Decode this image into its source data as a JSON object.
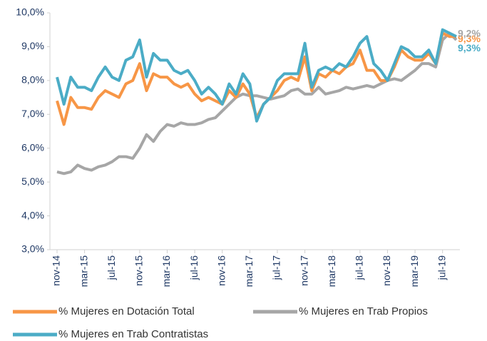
{
  "chart_data": {
    "type": "line",
    "categories": [
      "nov-14",
      null,
      null,
      null,
      "mar-15",
      null,
      null,
      null,
      "jul-15",
      null,
      null,
      null,
      "nov-15",
      null,
      null,
      null,
      "mar-16",
      null,
      null,
      null,
      "jul-16",
      null,
      null,
      null,
      "nov-16",
      null,
      null,
      null,
      "mar-17",
      null,
      null,
      null,
      "jul-17",
      null,
      null,
      null,
      "nov-17",
      null,
      null,
      null,
      "mar-18",
      null,
      null,
      null,
      "jul-18",
      null,
      null,
      null,
      "nov-18",
      null,
      null,
      null,
      "mar-19",
      null,
      null,
      null,
      "jul-19",
      null,
      null
    ],
    "series": [
      {
        "name": "% Mujeres en Dotación Total",
        "color": "#f79646",
        "values": [
          7.4,
          6.7,
          7.5,
          7.2,
          7.2,
          7.15,
          7.5,
          7.7,
          7.6,
          7.5,
          7.9,
          8.0,
          8.5,
          7.7,
          8.2,
          8.1,
          8.1,
          7.9,
          7.8,
          7.9,
          7.6,
          7.4,
          7.5,
          7.4,
          7.3,
          7.7,
          7.5,
          7.9,
          7.6,
          6.9,
          7.3,
          7.5,
          7.7,
          8.0,
          8.1,
          8.0,
          8.7,
          7.7,
          8.2,
          8.1,
          8.3,
          8.2,
          8.4,
          8.5,
          8.9,
          8.3,
          8.3,
          8.0,
          8.0,
          8.4,
          8.9,
          8.7,
          8.6,
          8.6,
          8.8,
          8.5,
          9.4,
          9.3,
          9.3
        ],
        "value_labels": [
          null,
          null,
          null,
          null,
          null,
          null,
          null,
          null,
          null,
          null,
          null,
          null,
          null,
          null,
          null,
          null,
          null,
          null,
          null,
          null,
          null,
          null,
          null,
          null,
          null,
          null,
          null,
          null,
          null,
          null,
          null,
          null,
          null,
          null,
          null,
          null,
          null,
          null,
          null,
          null,
          null,
          null,
          null,
          null,
          null,
          null,
          null,
          null,
          null,
          null,
          null,
          null,
          null,
          null,
          null,
          null,
          null,
          null,
          "9,3%"
        ]
      },
      {
        "name": "% Mujeres en Trab Propios",
        "color": "#a6a6a6",
        "values": [
          5.3,
          5.25,
          5.3,
          5.5,
          5.4,
          5.35,
          5.45,
          5.5,
          5.6,
          5.75,
          5.75,
          5.7,
          6.0,
          6.4,
          6.2,
          6.5,
          6.7,
          6.65,
          6.75,
          6.7,
          6.7,
          6.75,
          6.85,
          6.9,
          7.1,
          7.3,
          7.5,
          7.6,
          7.55,
          7.55,
          7.5,
          7.45,
          7.5,
          7.55,
          7.7,
          7.75,
          7.6,
          7.6,
          7.8,
          7.6,
          7.65,
          7.7,
          7.8,
          7.75,
          7.8,
          7.85,
          7.8,
          7.9,
          8.0,
          8.05,
          8.0,
          8.15,
          8.3,
          8.5,
          8.5,
          8.4,
          9.2,
          9.4,
          9.2
        ],
        "value_labels": [
          null,
          null,
          null,
          null,
          null,
          null,
          null,
          null,
          null,
          null,
          null,
          null,
          null,
          null,
          null,
          null,
          null,
          null,
          null,
          null,
          null,
          null,
          null,
          null,
          null,
          null,
          null,
          null,
          null,
          null,
          null,
          null,
          null,
          null,
          null,
          null,
          null,
          null,
          null,
          null,
          null,
          null,
          null,
          null,
          null,
          null,
          null,
          null,
          null,
          null,
          null,
          null,
          null,
          null,
          null,
          null,
          null,
          null,
          "9,2%"
        ]
      },
      {
        "name": "% Mujeres en Trab Contratistas",
        "color": "#4bacc6",
        "values": [
          8.1,
          7.3,
          8.1,
          7.8,
          7.8,
          7.7,
          8.1,
          8.4,
          8.1,
          8.0,
          8.6,
          8.7,
          9.2,
          8.1,
          8.8,
          8.6,
          8.6,
          8.3,
          8.2,
          8.3,
          8.0,
          7.6,
          7.8,
          7.6,
          7.3,
          7.9,
          7.6,
          8.2,
          7.9,
          6.8,
          7.3,
          7.5,
          8.0,
          8.2,
          8.2,
          8.2,
          9.1,
          7.8,
          8.3,
          8.4,
          8.3,
          8.5,
          8.4,
          8.7,
          9.1,
          9.3,
          8.5,
          8.3,
          8.0,
          8.5,
          9.0,
          8.9,
          8.7,
          8.7,
          8.9,
          8.5,
          9.5,
          9.4,
          9.3
        ],
        "value_labels": [
          null,
          null,
          null,
          null,
          null,
          null,
          null,
          null,
          null,
          null,
          null,
          null,
          null,
          null,
          null,
          null,
          null,
          null,
          null,
          null,
          null,
          null,
          null,
          null,
          null,
          null,
          null,
          null,
          null,
          null,
          null,
          null,
          null,
          null,
          null,
          null,
          null,
          null,
          null,
          null,
          null,
          null,
          null,
          null,
          null,
          null,
          null,
          null,
          null,
          null,
          null,
          null,
          null,
          null,
          null,
          null,
          null,
          null,
          "9,3%"
        ]
      }
    ],
    "ylim": [
      3,
      10
    ],
    "yticks": [
      {
        "value": 3,
        "label": "3,0%"
      },
      {
        "value": 4,
        "label": "4,0%"
      },
      {
        "value": 5,
        "label": "5,0%"
      },
      {
        "value": 6,
        "label": "6,0%"
      },
      {
        "value": 7,
        "label": "7,0%"
      },
      {
        "value": 8,
        "label": "8,0%"
      },
      {
        "value": 9,
        "label": "9,0%"
      },
      {
        "value": 10,
        "label": "10,0%"
      }
    ],
    "grid": false,
    "legend": "bottom"
  }
}
